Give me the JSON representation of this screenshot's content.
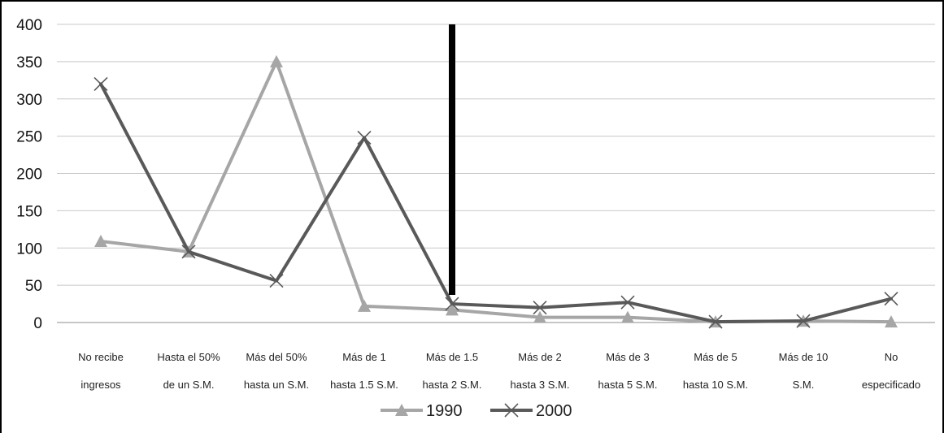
{
  "chart_data": {
    "type": "line",
    "categories": [
      [
        "No recibe",
        "ingresos"
      ],
      [
        "Hasta el 50%",
        "de un S.M."
      ],
      [
        "Más del 50%",
        "hasta un S.M."
      ],
      [
        "Más de 1",
        "hasta 1.5 S.M."
      ],
      [
        "Más de 1.5",
        "hasta 2 S.M."
      ],
      [
        "Más de 2",
        "hasta 3 S.M."
      ],
      [
        "Más de 3",
        "hasta 5 S.M."
      ],
      [
        "Más de 5",
        "hasta 10 S.M."
      ],
      [
        "Más de 10",
        "S.M."
      ],
      [
        "No",
        "especificado"
      ]
    ],
    "series": [
      {
        "name": "1990",
        "color": "#a6a6a6",
        "marker": "triangle",
        "values": [
          109,
          95,
          350,
          22,
          17,
          7,
          7,
          1,
          2,
          1
        ]
      },
      {
        "name": "2000",
        "color": "#595959",
        "marker": "x",
        "values": [
          320,
          95,
          56,
          248,
          25,
          20,
          27,
          1,
          2,
          32
        ]
      }
    ],
    "ylim": [
      0,
      400
    ],
    "yticks": [
      0,
      50,
      100,
      150,
      200,
      250,
      300,
      350,
      400
    ],
    "yticks_labels": [
      "0",
      "50",
      "100",
      "150",
      "200",
      "250",
      "300",
      "350",
      "400"
    ],
    "grid": true,
    "legend_position": "bottom",
    "annotation": {
      "type": "vertical-line",
      "between": [
        "Más de 1.5",
        "hasta 2 S.M."
      ],
      "color": "#000000"
    }
  }
}
